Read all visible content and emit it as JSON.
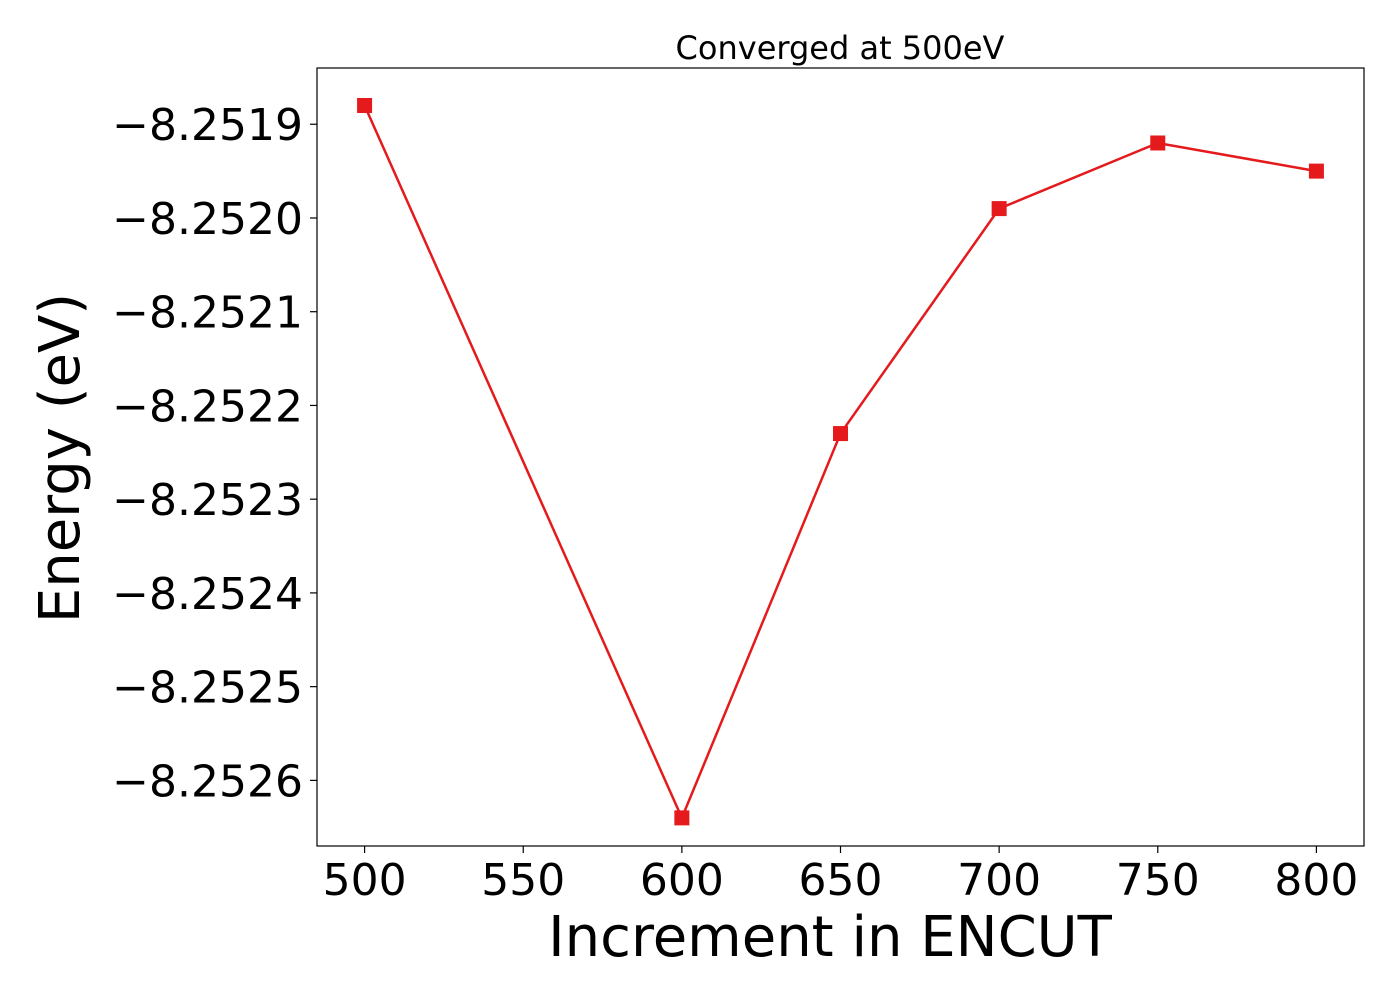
{
  "chart_data": {
    "type": "line",
    "title": "Converged at 500eV",
    "xlabel": "Increment in ENCUT",
    "ylabel": "Energy (eV)",
    "x": [
      500,
      600,
      650,
      700,
      750,
      800
    ],
    "series": [
      {
        "values": [
          -8.25188,
          -8.25264,
          -8.25223,
          -8.25199,
          -8.25192,
          -8.25195
        ],
        "color": "#e41a1c",
        "marker": "square"
      }
    ],
    "xlim": [
      485,
      815
    ],
    "ylim": [
      -8.25267,
      -8.25184
    ],
    "xticks": [
      500,
      550,
      600,
      650,
      700,
      750,
      800
    ],
    "yticks": [
      -8.2526,
      -8.2525,
      -8.2524,
      -8.2523,
      -8.2522,
      -8.2521,
      -8.252,
      -8.2519
    ],
    "xtick_labels": [
      "500",
      "550",
      "600",
      "650",
      "700",
      "750",
      "800"
    ],
    "ytick_labels": [
      "−8.2526",
      "−8.2525",
      "−8.2524",
      "−8.2523",
      "−8.2522",
      "−8.2521",
      "−8.2520",
      "−8.2519"
    ],
    "grid": false,
    "legend": false
  }
}
